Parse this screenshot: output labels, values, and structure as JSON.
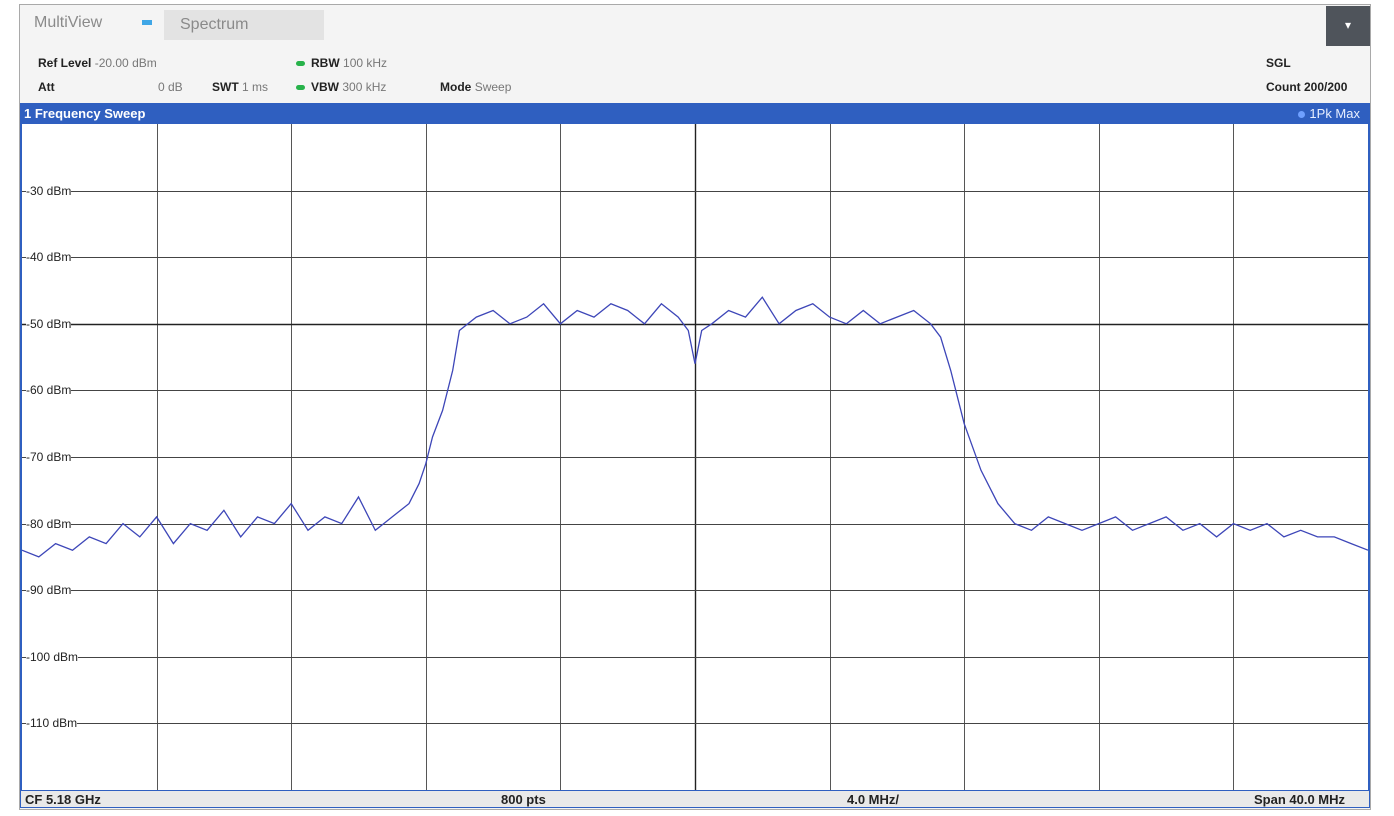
{
  "tabs": {
    "multiview": "MultiView",
    "spectrum": "Spectrum",
    "menu_glyph": "▾",
    "indicator_color": "#3fa6e6"
  },
  "params": {
    "ref_level_label": "Ref Level",
    "ref_level_value": "-20.00 dBm",
    "att_label": "Att",
    "att_value": "0 dB",
    "swt_label": "SWT",
    "swt_value": "1 ms",
    "rbw_label": "RBW",
    "rbw_value": "100 kHz",
    "vbw_label": "VBW",
    "vbw_value": "300 kHz",
    "mode_label": "Mode",
    "mode_value": "Sweep",
    "sgl": "SGL",
    "count": "Count 200/200"
  },
  "window": {
    "title": "1 Frequency Sweep",
    "trace": "1Pk Max",
    "header_color": "#2f5fc0"
  },
  "chart_data": {
    "type": "line",
    "ylim": [
      -120,
      -20
    ],
    "yticks": [
      "-30 dBm",
      "-40 dBm",
      "-50 dBm",
      "-60 dBm",
      "-70 dBm",
      "-80 dBm",
      "-90 dBm",
      "-100 dBm",
      "-110 dBm"
    ],
    "ytick_values": [
      -30,
      -40,
      -50,
      -60,
      -70,
      -80,
      -90,
      -100,
      -110
    ],
    "x_unit": "MHz offset from CF",
    "xlim": [
      -20,
      20
    ],
    "grid": true,
    "trace_color": "#3d46b8",
    "series": [
      {
        "x": [
          -20,
          -19.5,
          -19,
          -18.5,
          -18,
          -17.5,
          -17,
          -16.5,
          -16,
          -15.5,
          -15,
          -14.5,
          -14,
          -13.5,
          -13,
          -12.5,
          -12,
          -11.5,
          -11,
          -10.5,
          -10,
          -9.5,
          -9,
          -8.5,
          -8.2,
          -8,
          -7.8,
          -7.5,
          -7.2,
          -7,
          -6.5,
          -6,
          -5.5,
          -5,
          -4.5,
          -4,
          -3.5,
          -3,
          -2.5,
          -2,
          -1.5,
          -1,
          -0.5,
          -0.2,
          0,
          0.2,
          0.5,
          1,
          1.5,
          2,
          2.5,
          3,
          3.5,
          4,
          4.5,
          5,
          5.5,
          6,
          6.5,
          7,
          7.3,
          7.6,
          8,
          8.5,
          9,
          9.5,
          10,
          10.5,
          11,
          11.5,
          12,
          12.5,
          13,
          13.5,
          14,
          14.5,
          15,
          15.5,
          16,
          16.5,
          17,
          17.5,
          18,
          18.5,
          19,
          19.5,
          20
        ],
        "y": [
          -84,
          -85,
          -83,
          -84,
          -82,
          -83,
          -80,
          -82,
          -79,
          -83,
          -80,
          -81,
          -78,
          -82,
          -79,
          -80,
          -77,
          -81,
          -79,
          -80,
          -76,
          -81,
          -79,
          -77,
          -74,
          -71,
          -67,
          -63,
          -57,
          -51,
          -49,
          -48,
          -50,
          -49,
          -47,
          -50,
          -48,
          -49,
          -47,
          -48,
          -50,
          -47,
          -49,
          -51,
          -56,
          -51,
          -50,
          -48,
          -49,
          -46,
          -50,
          -48,
          -47,
          -49,
          -50,
          -48,
          -50,
          -49,
          -48,
          -50,
          -52,
          -57,
          -65,
          -72,
          -77,
          -80,
          -81,
          -79,
          -80,
          -81,
          -80,
          -79,
          -81,
          -80,
          -79,
          -81,
          -80,
          -82,
          -80,
          -81,
          -80,
          -82,
          -81,
          -82,
          -82,
          -83,
          -84
        ]
      }
    ]
  },
  "footer": {
    "cf": "CF 5.18 GHz",
    "pts": "800 pts",
    "div": "4.0 MHz/",
    "span": "Span 40.0 MHz"
  }
}
